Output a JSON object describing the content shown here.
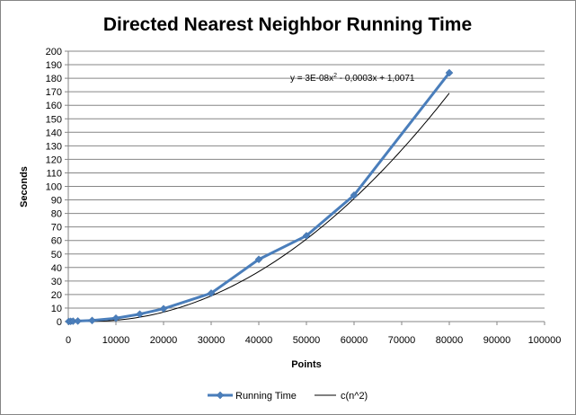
{
  "chart_data": {
    "type": "line",
    "title": "Directed Nearest Neighbor Running Time",
    "xlabel": "Points",
    "ylabel": "Seconds",
    "xlim": [
      0,
      100000
    ],
    "ylim": [
      0,
      200
    ],
    "x_ticks": [
      "0",
      "10000",
      "20000",
      "30000",
      "40000",
      "50000",
      "60000",
      "70000",
      "80000",
      "90000",
      "100000"
    ],
    "y_ticks": [
      "0",
      "10",
      "20",
      "30",
      "40",
      "50",
      "60",
      "70",
      "80",
      "90",
      "100",
      "110",
      "120",
      "130",
      "140",
      "150",
      "160",
      "170",
      "180",
      "190",
      "200"
    ],
    "grid": "horizontal",
    "legend_position": "bottom",
    "series": [
      {
        "name": "Running Time",
        "color": "#4a7ebb",
        "marker": "diamond",
        "x": [
          100,
          500,
          1000,
          2000,
          5000,
          10000,
          15000,
          20000,
          30000,
          40000,
          50000,
          60000,
          80000
        ],
        "y": [
          0.1,
          0.2,
          0.3,
          0.4,
          0.8,
          2.5,
          5.5,
          9.5,
          21,
          46,
          63.5,
          93.5,
          184
        ]
      },
      {
        "name": "c(n^2)",
        "color": "#000000",
        "type": "trendline",
        "coefficients": {
          "a": 3e-08,
          "b": -0.0003,
          "c": 1.0071
        },
        "x_range": [
          0,
          80000
        ]
      }
    ],
    "annotations": [
      {
        "text_prefix": "y = 3E-08x",
        "superscript": "2",
        "text_suffix": " - 0,0003x + 1,0071"
      }
    ]
  }
}
